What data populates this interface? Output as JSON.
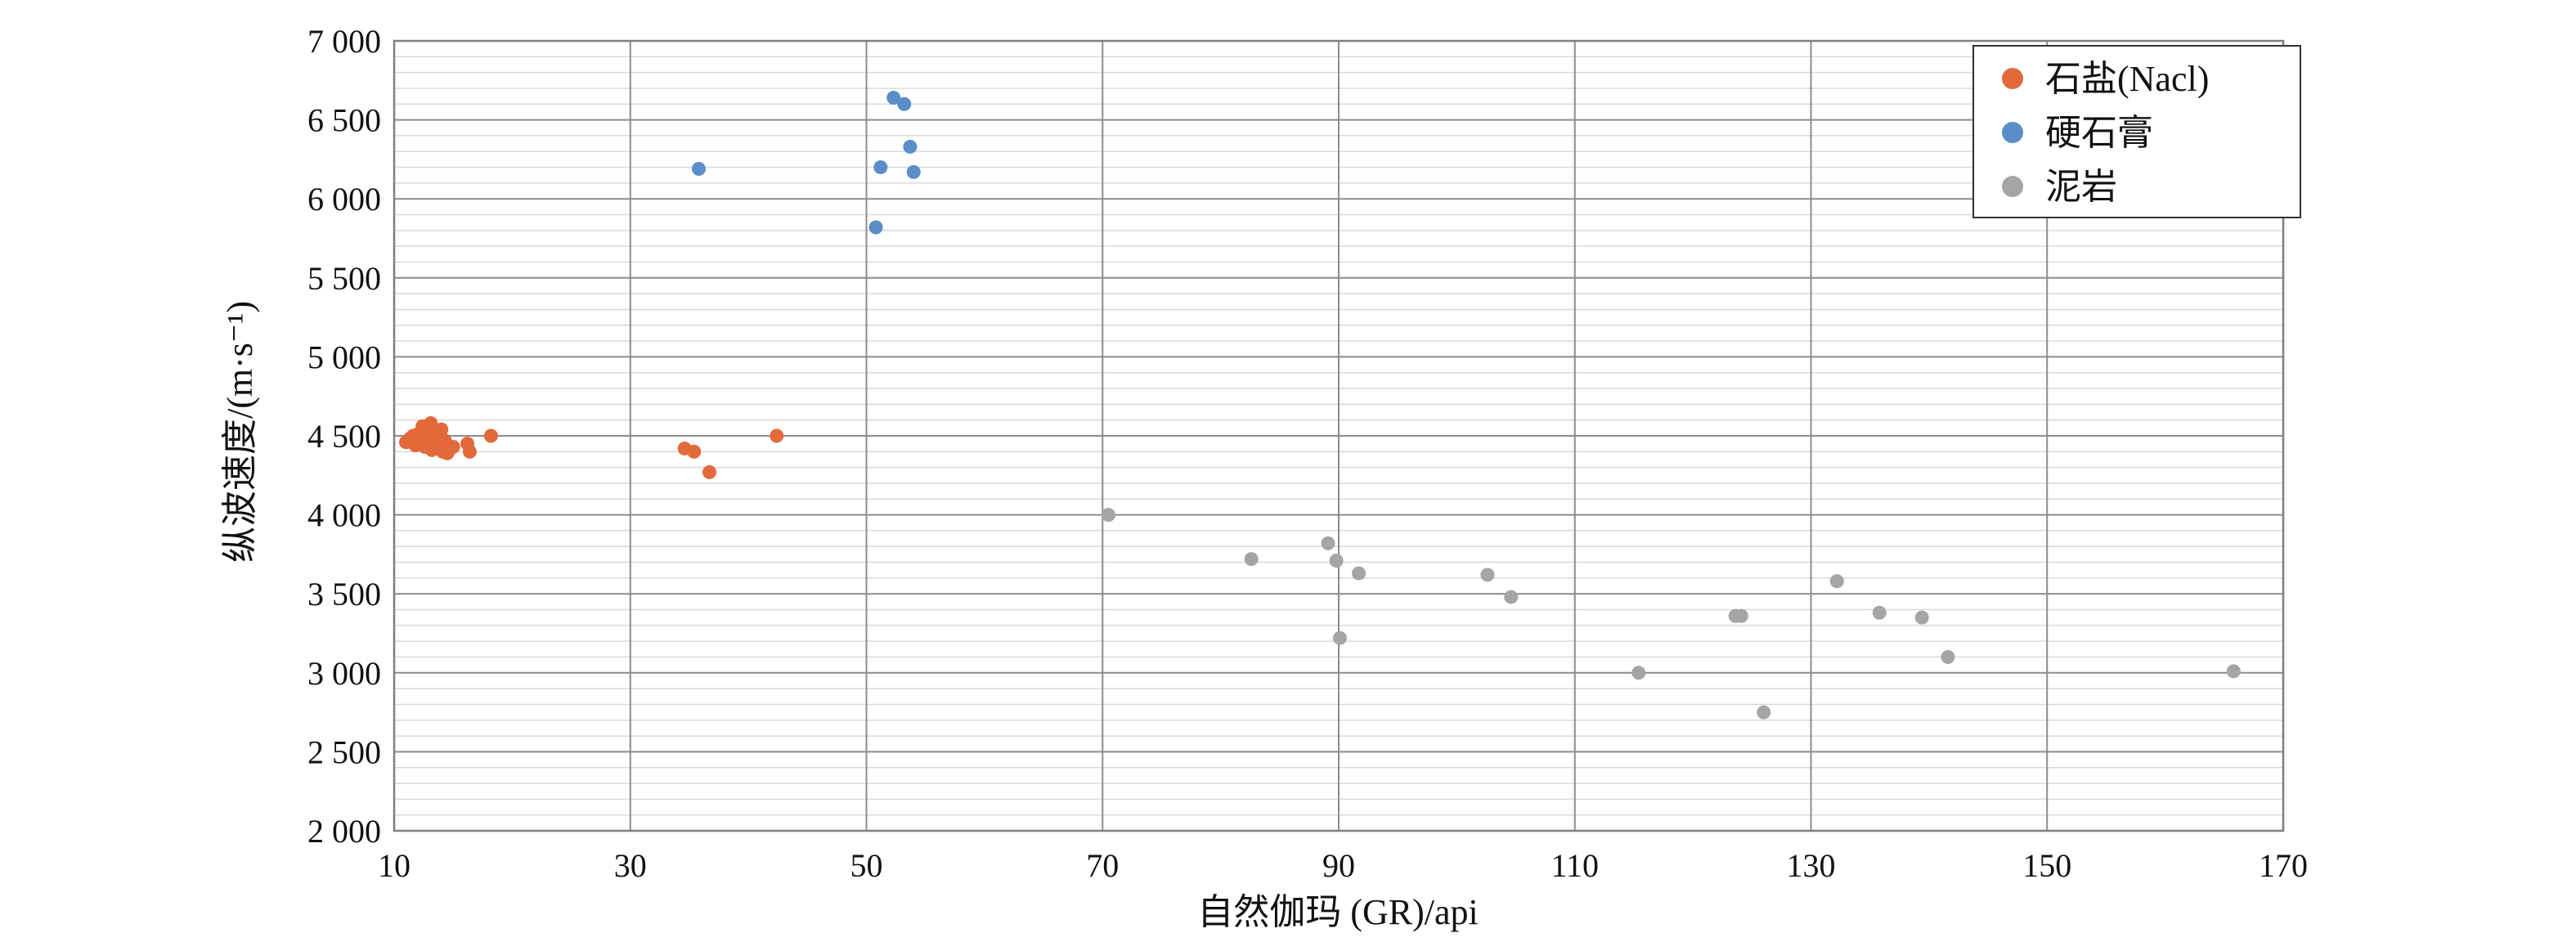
{
  "chart_data": {
    "type": "scatter",
    "title": "",
    "xlabel": "自然伽玛 (GR)/api",
    "ylabel": "纵波速度/(m·s⁻¹)",
    "xlim": [
      10,
      170
    ],
    "ylim": [
      2000,
      7000
    ],
    "x_major_step": 20,
    "y_major_step": 500,
    "y_minor_step": 100,
    "x_tick_labels": [
      "10",
      "30",
      "50",
      "70",
      "90",
      "110",
      "130",
      "150",
      "170"
    ],
    "y_tick_labels": [
      "2 000",
      "2 500",
      "3 000",
      "3 500",
      "4 000",
      "4 500",
      "5 000",
      "5 500",
      "6 000",
      "6 500",
      "7 000"
    ],
    "grid": true,
    "legend_position": "top-right",
    "series": [
      {
        "name": "石盐(Nacl)",
        "color": "#e2693a",
        "points": [
          [
            11.0,
            4460
          ],
          [
            11.3,
            4480
          ],
          [
            11.6,
            4500
          ],
          [
            11.8,
            4440
          ],
          [
            12.0,
            4510
          ],
          [
            12.2,
            4470
          ],
          [
            12.4,
            4560
          ],
          [
            12.6,
            4430
          ],
          [
            12.8,
            4490
          ],
          [
            13.0,
            4500
          ],
          [
            13.1,
            4580
          ],
          [
            13.2,
            4410
          ],
          [
            13.4,
            4460
          ],
          [
            13.6,
            4520
          ],
          [
            13.8,
            4440
          ],
          [
            14.0,
            4540
          ],
          [
            14.1,
            4400
          ],
          [
            14.3,
            4470
          ],
          [
            14.5,
            4390
          ],
          [
            14.8,
            4420
          ],
          [
            15.0,
            4430
          ],
          [
            16.2,
            4450
          ],
          [
            16.4,
            4400
          ],
          [
            18.2,
            4500
          ],
          [
            34.6,
            4420
          ],
          [
            35.4,
            4400
          ],
          [
            36.7,
            4270
          ],
          [
            42.4,
            4500
          ]
        ]
      },
      {
        "name": "硬石膏",
        "color": "#5b8ec9",
        "points": [
          [
            35.8,
            6190
          ],
          [
            50.8,
            5820
          ],
          [
            51.2,
            6200
          ],
          [
            52.3,
            6640
          ],
          [
            53.2,
            6600
          ],
          [
            53.7,
            6330
          ],
          [
            54.0,
            6170
          ]
        ]
      },
      {
        "name": "泥岩",
        "color": "#a5a5a5",
        "points": [
          [
            70.5,
            4000
          ],
          [
            82.6,
            3720
          ],
          [
            89.1,
            3820
          ],
          [
            89.8,
            3710
          ],
          [
            90.1,
            3220
          ],
          [
            91.7,
            3630
          ],
          [
            102.6,
            3620
          ],
          [
            104.6,
            3480
          ],
          [
            115.4,
            3000
          ],
          [
            123.6,
            3360
          ],
          [
            124.1,
            3360
          ],
          [
            126.0,
            2750
          ],
          [
            132.2,
            3580
          ],
          [
            135.8,
            3380
          ],
          [
            139.4,
            3350
          ],
          [
            141.6,
            3100
          ],
          [
            165.8,
            3010
          ]
        ]
      }
    ]
  }
}
